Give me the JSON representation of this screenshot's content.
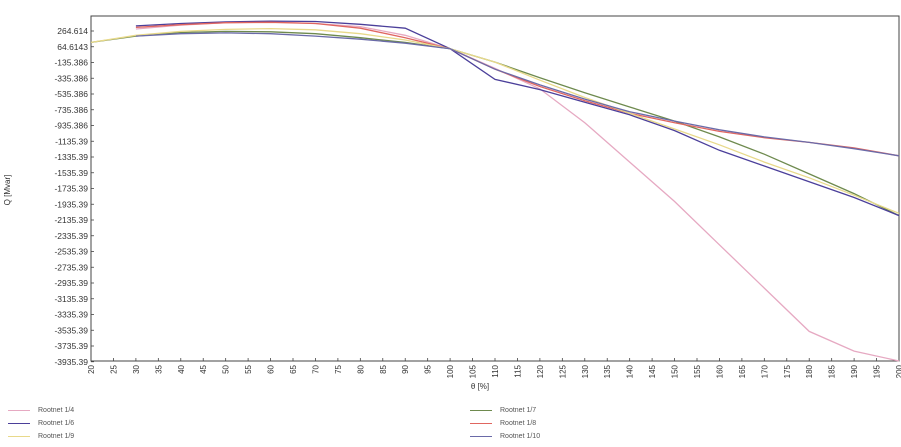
{
  "chart_data": {
    "type": "line",
    "xlabel": "θ [%]",
    "ylabel": "Q [Mvar]",
    "y_tick_labels": [
      "264.614",
      "64.6143",
      "-135.386",
      "-335.386",
      "-535.386",
      "-735.386",
      "-935.386",
      "-1135.39",
      "-1335.39",
      "-1535.39",
      "-1735.39",
      "-1935.39",
      "-2135.39",
      "-2335.39",
      "-2535.39",
      "-2735.39",
      "-2935.39",
      "-3135.39",
      "-3335.39",
      "-3535.39",
      "-3735.39",
      "-3935.39"
    ],
    "ylim": [
      -3935.39,
      400
    ],
    "xlim": [
      20,
      200
    ],
    "x_ticks": [
      20,
      25,
      30,
      35,
      40,
      45,
      50,
      55,
      60,
      65,
      70,
      75,
      80,
      85,
      90,
      95,
      100,
      105,
      110,
      115,
      120,
      125,
      130,
      135,
      140,
      145,
      150,
      155,
      160,
      165,
      170,
      175,
      180,
      185,
      190,
      195,
      200
    ],
    "grid": false,
    "legend_position": "bottom",
    "series": [
      {
        "name": "Rootnet 1/4",
        "color": "#e6a9c2",
        "x": [
          30,
          40,
          50,
          60,
          70,
          80,
          90,
          100,
          110,
          120,
          130,
          140,
          150,
          160,
          170,
          180,
          190,
          200
        ],
        "y": [
          290,
          340,
          370,
          380,
          360,
          320,
          210,
          40,
          -210,
          -470,
          -900,
          -1400,
          -1900,
          -2450,
          -3000,
          -3550,
          -3800,
          -4020
        ]
      },
      {
        "name": "Rootnet 1/7",
        "color": "#6e8a4e",
        "x": [
          20,
          30,
          40,
          50,
          60,
          70,
          80,
          90,
          100,
          110,
          120,
          130,
          140,
          150,
          160,
          170,
          180,
          190,
          200
        ],
        "y": [
          120,
          200,
          245,
          260,
          255,
          230,
          180,
          120,
          40,
          -130,
          -330,
          -520,
          -700,
          -880,
          -1080,
          -1300,
          -1550,
          -1800,
          -2080
        ]
      },
      {
        "name": "Rootnet 1/6",
        "color": "#4b3f9a",
        "x": [
          30,
          40,
          50,
          60,
          70,
          80,
          90,
          100,
          110,
          120,
          130,
          140,
          150,
          160,
          170,
          180,
          190,
          200
        ],
        "y": [
          330,
          360,
          380,
          390,
          385,
          350,
          300,
          40,
          -350,
          -480,
          -640,
          -800,
          -1000,
          -1250,
          -1450,
          -1650,
          -1850,
          -2080
        ]
      },
      {
        "name": "Rootnet 1/8",
        "color": "#e06660",
        "x": [
          30,
          40,
          50,
          60,
          70,
          80,
          90,
          100,
          110,
          120,
          130,
          140,
          150,
          160,
          170,
          180,
          190,
          200
        ],
        "y": [
          310,
          345,
          370,
          375,
          360,
          300,
          180,
          40,
          -220,
          -440,
          -620,
          -780,
          -900,
          -1010,
          -1090,
          -1150,
          -1220,
          -1320
        ]
      },
      {
        "name": "Rootnet 1/9",
        "color": "#e8d98a",
        "x": [
          20,
          30,
          40,
          50,
          60,
          70,
          80,
          90,
          100,
          110,
          120,
          130,
          140,
          150,
          160,
          170,
          180,
          190,
          200
        ],
        "y": [
          120,
          210,
          260,
          285,
          295,
          280,
          230,
          150,
          40,
          -130,
          -360,
          -580,
          -780,
          -980,
          -1180,
          -1400,
          -1600,
          -1820,
          -2050
        ]
      },
      {
        "name": "Rootnet 1/10",
        "color": "#6a6aa8",
        "x": [
          30,
          40,
          50,
          60,
          70,
          80,
          90,
          100,
          110,
          120,
          130,
          140,
          150,
          160,
          170,
          180,
          190,
          200
        ],
        "y": [
          200,
          230,
          240,
          230,
          200,
          160,
          110,
          40,
          -220,
          -420,
          -600,
          -760,
          -880,
          -990,
          -1080,
          -1150,
          -1230,
          -1320
        ]
      }
    ]
  }
}
